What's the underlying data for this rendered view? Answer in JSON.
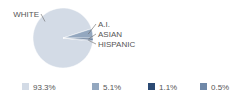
{
  "chart_data": {
    "type": "pie",
    "categories": [
      "WHITE",
      "A.I.",
      "ASIAN",
      "HISPANIC"
    ],
    "values": [
      93.3,
      5.1,
      1.1,
      0.5
    ],
    "value_labels": [
      "93.3%",
      "5.1%",
      "1.1%",
      "0.5%"
    ],
    "colors": [
      "#d3dbe6",
      "#93a7bf",
      "#2b4a73",
      "#6f88a8"
    ]
  }
}
